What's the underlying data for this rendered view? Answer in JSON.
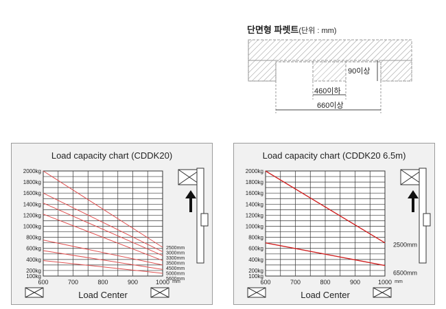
{
  "pallet": {
    "title": "단면형 파렛트",
    "unit": "(단위 : mm)",
    "dim_height": "90이상",
    "dim_inner": "460이하",
    "dim_outer": "660이상"
  },
  "chart_data": [
    {
      "type": "line",
      "title": "Load capacity chart (CDDK20)",
      "xlabel": "Load Center",
      "x_unit": "mm",
      "xlim": [
        600,
        1000
      ],
      "ylim": [
        100,
        2000
      ],
      "x_ticks": [
        "600",
        "700",
        "800",
        "900",
        "1000"
      ],
      "y_ticks": [
        "2000kg",
        "1800kg",
        "1600kg",
        "1400kg",
        "1200kg",
        "1000kg",
        "800kg",
        "600kg",
        "400kg",
        "200kg",
        "100kg"
      ],
      "y_tick_values": [
        2000,
        1800,
        1600,
        1400,
        1200,
        1000,
        800,
        600,
        400,
        200,
        100
      ],
      "series": [
        {
          "name": "2500mm",
          "x": [
            600,
            1000
          ],
          "y": [
            2000,
            620
          ]
        },
        {
          "name": "3000mm",
          "x": [
            600,
            1000
          ],
          "y": [
            1600,
            540
          ]
        },
        {
          "name": "3300mm",
          "x": [
            600,
            1000
          ],
          "y": [
            1420,
            470
          ]
        },
        {
          "name": "3500mm",
          "x": [
            600,
            1000
          ],
          "y": [
            1220,
            380
          ]
        },
        {
          "name": "4500mm",
          "x": [
            600,
            1000
          ],
          "y": [
            750,
            300
          ]
        },
        {
          "name": "5000mm",
          "x": [
            600,
            1000
          ],
          "y": [
            560,
            220
          ]
        },
        {
          "name": "5600mm",
          "x": [
            600,
            1000
          ],
          "y": [
            380,
            150
          ]
        }
      ],
      "line_color": "#e05050",
      "grid": true
    },
    {
      "type": "line",
      "title": "Load capacity chart (CDDK20 6.5m)",
      "xlabel": "Load Center",
      "x_unit": "mm",
      "xlim": [
        600,
        1000
      ],
      "ylim": [
        100,
        2000
      ],
      "x_ticks": [
        "600",
        "700",
        "800",
        "900",
        "1000"
      ],
      "y_ticks": [
        "2000kg",
        "1800kg",
        "1600kg",
        "1400kg",
        "1200kg",
        "1000kg",
        "800kg",
        "600kg",
        "400kg",
        "200kg",
        "100kg"
      ],
      "y_tick_values": [
        2000,
        1800,
        1600,
        1400,
        1200,
        1000,
        800,
        600,
        400,
        200,
        100
      ],
      "series": [
        {
          "name": "2500mm",
          "x": [
            600,
            1000
          ],
          "y": [
            2000,
            700
          ]
        },
        {
          "name": "6500mm",
          "x": [
            600,
            1000
          ],
          "y": [
            700,
            290
          ]
        }
      ],
      "line_color": "#d02020",
      "grid": true
    }
  ]
}
